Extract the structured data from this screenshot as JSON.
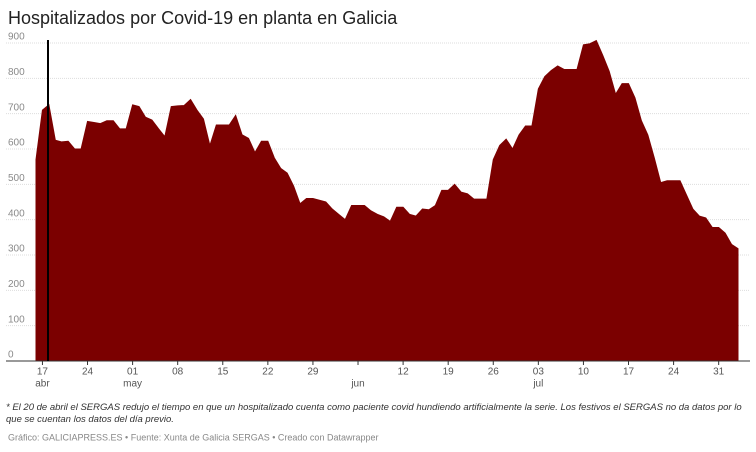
{
  "chart_data": {
    "type": "area",
    "title": "Hospitalizados por Covid-19 en planta en Galicia",
    "note": "* El 20 de abril el SERGAS redujo el tiempo en que un hospitalizado cuenta como paciente covid hundiendo artificialmente la serie. Los festivos el SERGAS no da datos por lo que se cuentan los datos del día previo.",
    "source": "Gráfico: GALICIAPRESS.ES • Fuente: Xunta de Galicia SERGAS • Creado con Datawrapper",
    "categories": [
      null,
      "17",
      null,
      null,
      null,
      null,
      null,
      null,
      "24",
      null,
      null,
      null,
      null,
      null,
      null,
      "01",
      null,
      null,
      null,
      null,
      null,
      null,
      "08",
      null,
      null,
      null,
      null,
      null,
      null,
      "15",
      null,
      null,
      null,
      null,
      null,
      null,
      "22",
      null,
      null,
      null,
      null,
      null,
      null,
      "29",
      null,
      null,
      null,
      null,
      null,
      null,
      null,
      null,
      null,
      null,
      null,
      null,
      null,
      "12",
      null,
      null,
      null,
      null,
      null,
      null,
      "19",
      null,
      null,
      null,
      null,
      null,
      null,
      "26",
      null,
      null,
      null,
      null,
      null,
      null,
      "03",
      null,
      null,
      null,
      null,
      null,
      null,
      "10",
      null,
      null,
      null,
      null,
      null,
      null,
      "17",
      null,
      null,
      null,
      null,
      null,
      null,
      "24",
      null,
      null,
      null,
      null,
      null,
      null,
      "31",
      null,
      null,
      null
    ],
    "category_months": [
      null,
      "abr",
      null,
      null,
      null,
      null,
      null,
      null,
      null,
      null,
      null,
      null,
      null,
      null,
      null,
      "may",
      null,
      null,
      null,
      null,
      null,
      null,
      null,
      null,
      null,
      null,
      null,
      null,
      null,
      null,
      null,
      null,
      null,
      null,
      null,
      null,
      null,
      null,
      null,
      null,
      null,
      null,
      null,
      null,
      null,
      null,
      null,
      null,
      null,
      null,
      "jun",
      null,
      null,
      null,
      null,
      null,
      null,
      null,
      null,
      null,
      null,
      null,
      null,
      null,
      null,
      null,
      null,
      null,
      null,
      null,
      null,
      null,
      null,
      null,
      null,
      null,
      null,
      null,
      "jul",
      null,
      null,
      null,
      null,
      null,
      null,
      null,
      null,
      null,
      null,
      null,
      null,
      null,
      null,
      null,
      null,
      null,
      null,
      null,
      null,
      null,
      null,
      null,
      null,
      null,
      null,
      null,
      null,
      null,
      null,
      null,
      null,
      null,
      null,
      null,
      null,
      null
    ],
    "values": [
      570,
      710,
      725,
      625,
      620,
      622,
      600,
      600,
      678,
      675,
      672,
      680,
      680,
      657,
      657,
      725,
      720,
      690,
      682,
      658,
      635,
      720,
      722,
      723,
      740,
      710,
      685,
      610,
      668,
      668,
      668,
      695,
      640,
      630,
      590,
      622,
      622,
      575,
      545,
      532,
      495,
      445,
      460,
      460,
      455,
      450,
      430,
      415,
      400,
      440,
      440,
      440,
      425,
      415,
      408,
      395,
      435,
      435,
      415,
      410,
      430,
      428,
      440,
      483,
      483,
      500,
      478,
      473,
      458,
      458,
      458,
      570,
      610,
      628,
      600,
      640,
      665,
      665,
      770,
      805,
      822,
      835,
      825,
      825,
      825,
      895,
      898,
      907,
      865,
      820,
      755,
      785,
      785,
      745,
      680,
      640,
      575,
      505,
      510,
      510,
      510,
      470,
      430,
      410,
      405,
      378,
      378,
      362,
      330,
      318
    ],
    "color": "#7b0000",
    "ylim": [
      0,
      900
    ],
    "yticks": [
      0,
      100,
      200,
      300,
      400,
      500,
      600,
      700,
      800,
      900
    ],
    "grid": true
  }
}
